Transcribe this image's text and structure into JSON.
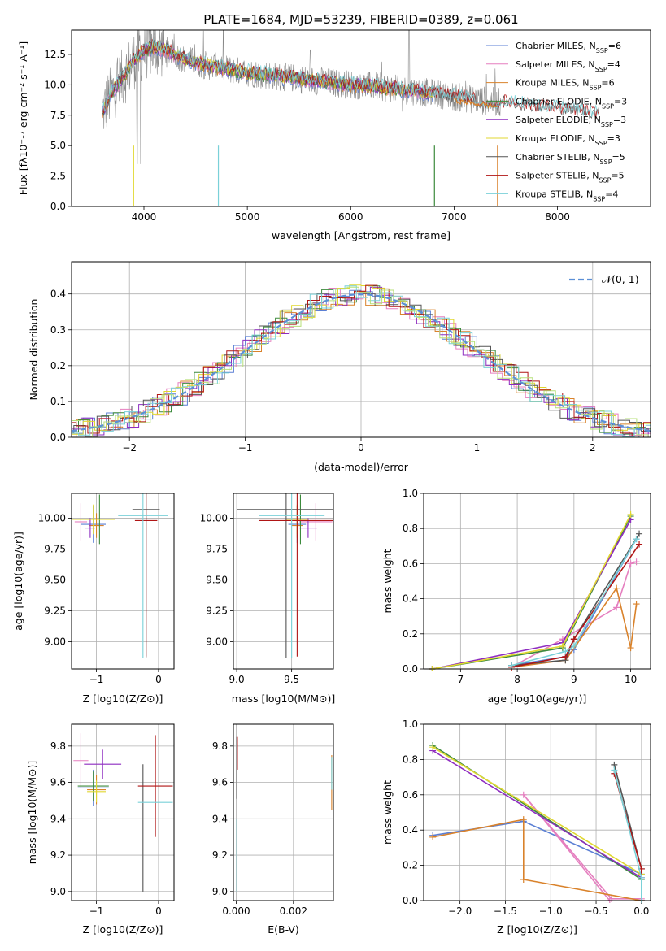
{
  "colors": {
    "Chabrier MILES": "#5b7fd4",
    "Salpeter MILES": "#e57fbf",
    "Kroupa MILES": "#d9822b",
    "Chabrier ELODIE": "#3c8a3c",
    "Salpeter ELODIE": "#8e2cc0",
    "Kroupa ELODIE": "#e0d730",
    "Chabrier STELIB": "#555555",
    "Salpeter STELIB": "#b01515",
    "Kroupa STELIB": "#7ad1d8",
    "data": "#888888",
    "normal": "#5b8fd6",
    "lightgreen": "#b7e07a"
  },
  "figure_title": "PLATE=1684, MJD=53239, FIBERID=0389, z=0.061",
  "chart_data": [
    {
      "type": "line",
      "title": "PLATE=1684, MJD=53239, FIBERID=0389, z=0.061",
      "xlabel": "wavelength [Angstrom, rest frame]",
      "ylabel": "Flux [fλ10⁻¹⁷ erg cm⁻² s⁻¹ A⁻¹]",
      "xlim": [
        3300,
        8900
      ],
      "ylim": [
        0,
        14.5
      ],
      "xticks": [
        "4000",
        "5000",
        "6000",
        "7000",
        "8000"
      ],
      "yticks": [
        "0.0",
        "2.5",
        "5.0",
        "7.5",
        "10.0",
        "12.5"
      ],
      "legend_position": "top-right",
      "legend": [
        {
          "name": "Chabrier MILES",
          "nssp": "6"
        },
        {
          "name": "Salpeter MILES",
          "nssp": "4"
        },
        {
          "name": "Kroupa MILES",
          "nssp": "6"
        },
        {
          "name": "Chabrier ELODIE",
          "nssp": "3"
        },
        {
          "name": "Salpeter ELODIE",
          "nssp": "3"
        },
        {
          "name": "Kroupa ELODIE",
          "nssp": "3"
        },
        {
          "name": "Chabrier STELIB",
          "nssp": "5"
        },
        {
          "name": "Salpeter STELIB",
          "nssp": "5"
        },
        {
          "name": "Kroupa STELIB",
          "nssp": "4"
        }
      ],
      "continuum": {
        "x": [
          3600,
          3700,
          3800,
          3900,
          4000,
          4100,
          4200,
          4400,
          4600,
          4800,
          5000,
          5300,
          5600,
          5900,
          6200,
          6500,
          6800,
          7100,
          7400,
          7700,
          8000,
          8300,
          8500
        ],
        "y": [
          7.8,
          9.5,
          10.6,
          12.0,
          12.8,
          13.1,
          12.9,
          12.1,
          11.6,
          11.3,
          11.0,
          10.7,
          10.4,
          10.1,
          9.9,
          9.6,
          9.3,
          8.9,
          8.6,
          8.3,
          8.0,
          7.7,
          7.4
        ]
      }
    },
    {
      "type": "line",
      "xlabel": "(data-model)/error",
      "ylabel": "Normed distribution",
      "xlim": [
        -2.5,
        2.5
      ],
      "ylim": [
        0,
        0.49
      ],
      "xticks": [
        "−2",
        "−1",
        "0",
        "1",
        "2"
      ],
      "yticks": [
        "0.0",
        "0.1",
        "0.2",
        "0.3",
        "0.4"
      ],
      "legend": [
        "𝒩(0, 1)"
      ],
      "legend_position": "top-right",
      "grid": true
    },
    {
      "type": "scatter",
      "xlabel": "Z [log10(Z/Z⊙)]",
      "ylabel": "age  [log10(age/yr)]",
      "xticks": [
        "−1",
        "0"
      ],
      "yticks": [
        "9.00",
        "9.25",
        "9.50",
        "9.75",
        "10.00"
      ],
      "xlim": [
        -1.4,
        0.25
      ],
      "ylim": [
        8.78,
        10.2
      ],
      "grid": true,
      "points": [
        {
          "model": "Chabrier MILES",
          "x": -1.05,
          "xerr": 0.2,
          "y": 9.95,
          "yerr": 0.15
        },
        {
          "model": "Salpeter MILES",
          "x": -1.25,
          "xerr": 0.1,
          "y": 9.97,
          "yerr": 0.15
        },
        {
          "model": "Kroupa MILES",
          "x": -1.0,
          "xerr": 0.12,
          "y": 9.94,
          "yerr": 0.1
        },
        {
          "model": "Chabrier ELODIE",
          "x": -0.95,
          "xerr": 0.25,
          "y": 9.99,
          "yerr": 0.2
        },
        {
          "model": "Salpeter ELODIE",
          "x": -1.1,
          "xerr": 0.08,
          "y": 9.92,
          "yerr": 0.08
        },
        {
          "model": "Kroupa ELODIE",
          "x": -1.05,
          "xerr": 0.35,
          "y": 9.99,
          "yerr": 0.12
        },
        {
          "model": "Chabrier STELIB",
          "x": -0.2,
          "xerr": 0.22,
          "y": 10.07,
          "yerr": 1.2
        },
        {
          "model": "Salpeter STELIB",
          "x": -0.2,
          "xerr": 0.18,
          "y": 9.98,
          "yerr": 1.1
        },
        {
          "model": "Kroupa STELIB",
          "x": -0.25,
          "xerr": 0.4,
          "y": 10.02,
          "yerr": 1.15
        }
      ]
    },
    {
      "type": "scatter",
      "xlabel": "mass [log10(M/M⊙)]",
      "xticks": [
        "9.0",
        "9.5"
      ],
      "yticks": [
        "9.00",
        "9.25",
        "9.50",
        "9.75",
        "10.00"
      ],
      "xlim": [
        8.97,
        9.88
      ],
      "ylim": [
        8.78,
        10.2
      ],
      "grid": true,
      "points": [
        {
          "model": "Chabrier MILES",
          "x": 9.55,
          "xerr": 0.08,
          "y": 9.95,
          "yerr": 0.15
        },
        {
          "model": "Salpeter MILES",
          "x": 9.72,
          "xerr": 0.15,
          "y": 9.97,
          "yerr": 0.15
        },
        {
          "model": "Kroupa MILES",
          "x": 9.55,
          "xerr": 0.05,
          "y": 9.94,
          "yerr": 0.1
        },
        {
          "model": "Chabrier ELODIE",
          "x": 9.58,
          "xerr": 0.06,
          "y": 9.99,
          "yerr": 0.2
        },
        {
          "model": "Salpeter ELODIE",
          "x": 9.65,
          "xerr": 0.08,
          "y": 9.92,
          "yerr": 0.08
        },
        {
          "model": "Kroupa ELODIE",
          "x": 9.55,
          "xerr": 0.1,
          "y": 9.99,
          "yerr": 0.12
        },
        {
          "model": "Chabrier STELIB",
          "x": 9.45,
          "xerr": 0.45,
          "y": 10.07,
          "yerr": 1.2
        },
        {
          "model": "Salpeter STELIB",
          "x": 9.55,
          "xerr": 0.35,
          "y": 9.98,
          "yerr": 1.1
        },
        {
          "model": "Kroupa STELIB",
          "x": 9.5,
          "xerr": 0.3,
          "y": 10.02,
          "yerr": 1.15
        }
      ]
    },
    {
      "type": "line",
      "xlabel": "age  [log10(age/yr)]",
      "ylabel": "mass weight",
      "xticks": [
        "7",
        "8",
        "9",
        "10"
      ],
      "yticks": [
        "0.0",
        "0.2",
        "0.4",
        "0.6",
        "0.8",
        "1.0"
      ],
      "xlim": [
        6.35,
        10.35
      ],
      "ylim": [
        0,
        1
      ],
      "grid": true,
      "series": [
        {
          "model": "Chabrier MILES",
          "x": [
            7.9,
            8.85,
            9.0,
            10.1
          ],
          "y": [
            0.02,
            0.07,
            0.11,
            0.74
          ]
        },
        {
          "model": "Salpeter MILES",
          "x": [
            7.9,
            8.8,
            9.75,
            10.0,
            10.1
          ],
          "y": [
            0.01,
            0.17,
            0.35,
            0.6,
            0.61
          ]
        },
        {
          "model": "Kroupa MILES",
          "x": [
            7.9,
            8.85,
            9.75,
            10.0,
            10.1
          ],
          "y": [
            0.01,
            0.05,
            0.46,
            0.12,
            0.37
          ]
        },
        {
          "model": "Chabrier ELODIE",
          "x": [
            6.5,
            8.8,
            10.0
          ],
          "y": [
            0.0,
            0.12,
            0.87
          ]
        },
        {
          "model": "Salpeter ELODIE",
          "x": [
            6.5,
            8.8,
            10.0
          ],
          "y": [
            0.0,
            0.15,
            0.85
          ]
        },
        {
          "model": "Kroupa ELODIE",
          "x": [
            6.5,
            8.8,
            10.0
          ],
          "y": [
            0.0,
            0.13,
            0.88
          ]
        },
        {
          "model": "Chabrier STELIB",
          "x": [
            7.9,
            8.85,
            9.0,
            10.15
          ],
          "y": [
            0.02,
            0.05,
            0.17,
            0.77
          ]
        },
        {
          "model": "Salpeter STELIB",
          "x": [
            7.9,
            8.85,
            9.0,
            10.15
          ],
          "y": [
            0.01,
            0.07,
            0.17,
            0.71
          ]
        },
        {
          "model": "Kroupa STELIB",
          "x": [
            7.9,
            8.85,
            9.0,
            10.1
          ],
          "y": [
            0.02,
            0.1,
            0.13,
            0.74
          ]
        }
      ]
    },
    {
      "type": "scatter",
      "xlabel": "Z [log10(Z/Z⊙)]",
      "ylabel": "mass [log10(M/M⊙)]",
      "xticks": [
        "−1",
        "0"
      ],
      "yticks": [
        "9.0",
        "9.2",
        "9.4",
        "9.6",
        "9.8"
      ],
      "xlim": [
        -1.4,
        0.25
      ],
      "ylim": [
        8.95,
        9.92
      ],
      "grid": true,
      "points": [
        {
          "model": "Chabrier MILES",
          "x": -1.05,
          "xerr": 0.25,
          "y": 9.57,
          "yerr": 0.1
        },
        {
          "model": "Salpeter MILES",
          "x": -1.25,
          "xerr": 0.12,
          "y": 9.72,
          "yerr": 0.15
        },
        {
          "model": "Kroupa MILES",
          "x": -1.0,
          "xerr": 0.15,
          "y": 9.56,
          "yerr": 0.08
        },
        {
          "model": "Chabrier ELODIE",
          "x": -1.05,
          "xerr": 0.25,
          "y": 9.58,
          "yerr": 0.08
        },
        {
          "model": "Salpeter ELODIE",
          "x": -0.9,
          "xerr": 0.3,
          "y": 9.7,
          "yerr": 0.08
        },
        {
          "model": "Kroupa ELODIE",
          "x": -1.0,
          "xerr": 0.15,
          "y": 9.55,
          "yerr": 0.06
        },
        {
          "model": "Chabrier STELIB",
          "x": -0.25,
          "xerr": 0.0,
          "y": 9.35,
          "yerr": 0.35
        },
        {
          "model": "Salpeter STELIB",
          "x": -0.05,
          "xerr": 0.28,
          "y": 9.58,
          "yerr": 0.28
        },
        {
          "model": "Kroupa STELIB",
          "x": -0.05,
          "xerr": 0.28,
          "y": 9.49,
          "yerr": 0.0
        }
      ]
    },
    {
      "type": "scatter",
      "xlabel": "E(B-V)",
      "xticks": [
        "0.000",
        "0.002"
      ],
      "yticks": [
        "9.0",
        "9.2",
        "9.4",
        "9.6",
        "9.8"
      ],
      "xlim": [
        -0.0001,
        0.0034
      ],
      "ylim": [
        8.95,
        9.92
      ],
      "grid": true,
      "points": [
        {
          "model": "Chabrier STELIB",
          "x": 2e-05,
          "y": 9.68,
          "yerr": 0.17
        },
        {
          "model": "Salpeter STELIB",
          "x": 4e-05,
          "y": 9.76,
          "yerr": 0.09
        },
        {
          "model": "Kroupa STELIB",
          "x": 2e-05,
          "y": 9.2,
          "yerr": 0.2
        },
        {
          "model": "Kroupa MILES",
          "x": 0.00334,
          "y": 9.6,
          "yerr": 0.15
        },
        {
          "model": "Kroupa STELIB",
          "x": 0.00334,
          "y": 9.65,
          "yerr": 0.09
        }
      ]
    },
    {
      "type": "line",
      "xlabel": "Z [log10(Z/Z⊙)]",
      "ylabel": "mass weight",
      "xticks": [
        "−2.0",
        "−1.5",
        "−1.0",
        "−0.5",
        "0.0"
      ],
      "yticks": [
        "0.0",
        "0.2",
        "0.4",
        "0.6",
        "0.8",
        "1.0"
      ],
      "xlim": [
        -2.4,
        0.1
      ],
      "ylim": [
        0,
        1
      ],
      "grid": true,
      "series": [
        {
          "model": "Chabrier MILES",
          "x": [
            -2.3,
            -1.3,
            0.0
          ],
          "y": [
            0.37,
            0.45,
            0.15
          ]
        },
        {
          "model": "Salpeter MILES",
          "x": [
            -0.35,
            -1.3,
            -0.33,
            0.0
          ],
          "y": [
            0.0,
            0.6,
            0.01,
            0.01
          ]
        },
        {
          "model": "Kroupa MILES",
          "x": [
            -2.3,
            -1.3,
            -1.3,
            0.0
          ],
          "y": [
            0.36,
            0.46,
            0.12,
            0.0
          ]
        },
        {
          "model": "Chabrier ELODIE",
          "x": [
            -2.3,
            0.0
          ],
          "y": [
            0.88,
            0.12
          ]
        },
        {
          "model": "Salpeter ELODIE",
          "x": [
            -2.3,
            0.0
          ],
          "y": [
            0.85,
            0.13
          ]
        },
        {
          "model": "Kroupa ELODIE",
          "x": [
            -2.3,
            0.0
          ],
          "y": [
            0.87,
            0.15
          ]
        },
        {
          "model": "Chabrier STELIB",
          "x": [
            -0.3,
            0.0,
            0.0
          ],
          "y": [
            0.77,
            0.18,
            0.0
          ]
        },
        {
          "model": "Salpeter STELIB",
          "x": [
            -0.3,
            0.0,
            0.0
          ],
          "y": [
            0.72,
            0.18,
            0.0
          ]
        },
        {
          "model": "Kroupa STELIB",
          "x": [
            -0.3,
            0.0,
            0.0
          ],
          "y": [
            0.74,
            0.13,
            0.0
          ]
        }
      ]
    }
  ]
}
